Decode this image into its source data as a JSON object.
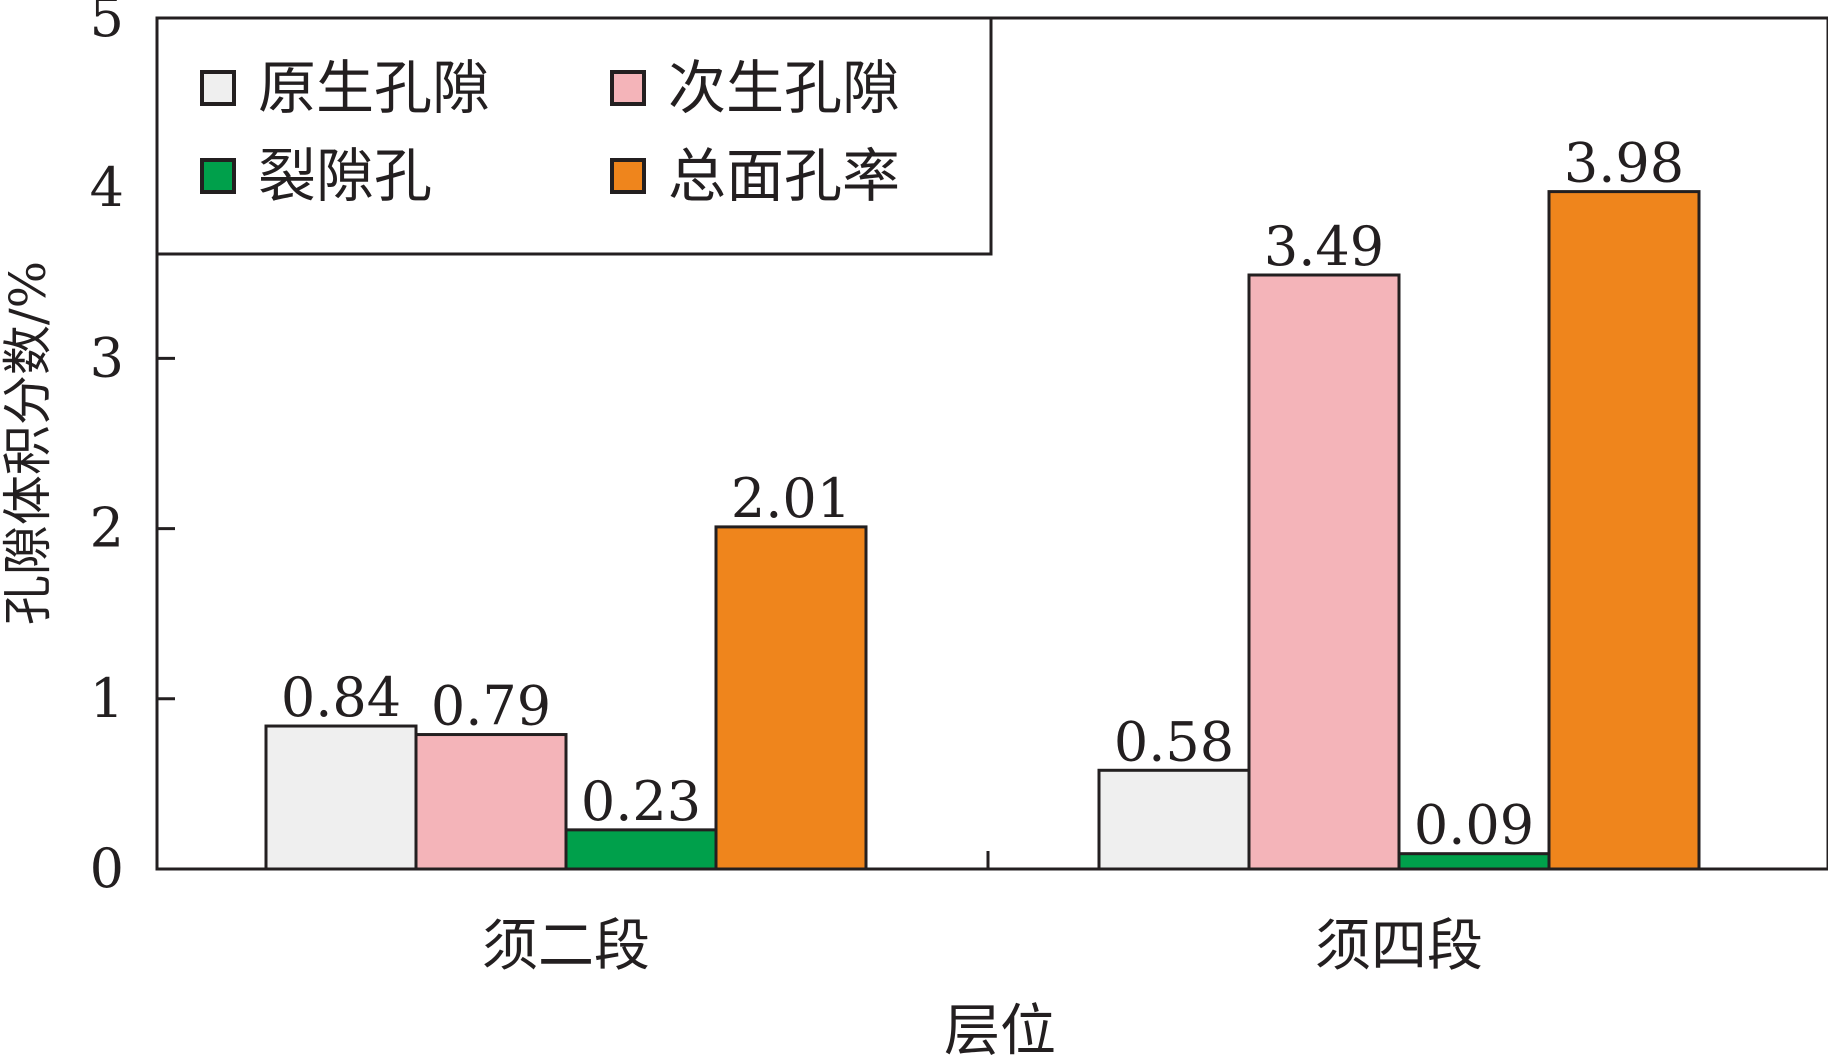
{
  "chart_data": {
    "type": "bar",
    "title": "",
    "xlabel": "层位",
    "ylabel": "孔隙体积分数/%",
    "ylim": [
      0,
      5
    ],
    "yticks": [
      "0",
      "1",
      "2",
      "3",
      "4",
      "5"
    ],
    "categories": [
      "须二段",
      "须四段"
    ],
    "series": [
      {
        "name": "原生孔隙",
        "color": "#efefef",
        "values": [
          0.84,
          0.58
        ],
        "labels": [
          "0.84",
          "0.58"
        ]
      },
      {
        "name": "次生孔隙",
        "color": "#f4b4b9",
        "values": [
          0.79,
          3.49
        ],
        "labels": [
          "0.79",
          "3.49"
        ]
      },
      {
        "name": "裂隙孔",
        "color": "#00a04b",
        "values": [
          0.23,
          0.09
        ],
        "labels": [
          "0.23",
          "0.09"
        ]
      },
      {
        "name": "总面孔率",
        "color": "#ef851c",
        "values": [
          2.01,
          3.98
        ],
        "labels": [
          "2.01",
          "3.98"
        ]
      }
    ],
    "legend_position": "top-left",
    "grid": false
  }
}
